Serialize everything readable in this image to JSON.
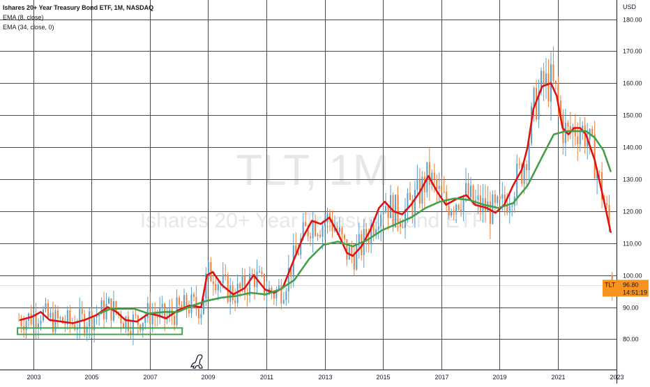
{
  "legend": {
    "title": "Ishares 20+ Year Treasury Bond ETF, 1M, NASDAQ",
    "ema_fast": "EMA (8, close)",
    "ema_slow": "EMA (34, close, 0)"
  },
  "watermark": {
    "symbol": "TLT, 1M",
    "name": "Ishares 20+ Year Treasury Bond ETF"
  },
  "price_tag": {
    "ticker": "TLT",
    "price": "96.80",
    "countdown": "14:51:19"
  },
  "colors": {
    "background": "#ffffff",
    "grid": "#4a4a4a",
    "ema_fast": "#e0120f",
    "ema_slow": "#43a047",
    "up_candle": "#5aa0c8",
    "down_candle": "#ef7f3a",
    "price_tag": "#f7931e",
    "box": "#43a047"
  },
  "icons": {
    "logo": "dinosaur-icon"
  },
  "chart_data": {
    "type": "candlestick",
    "title": "Ishares 20+ Year Treasury Bond ETF, 1M, NASDAQ",
    "y_unit": "USD",
    "ylim": [
      70.5,
      186
    ],
    "xlim": [
      2001.9,
      2023.05
    ],
    "grid": true,
    "y_ticks": [
      "180.00",
      "170.00",
      "160.00",
      "150.00",
      "140.00",
      "130.00",
      "120.00",
      "110.00",
      "100.00",
      "90.00",
      "80.00"
    ],
    "x_ticks": [
      "2003",
      "2005",
      "2007",
      "2009",
      "2011",
      "2013",
      "2015",
      "2017",
      "2019",
      "2021",
      "2023"
    ],
    "last_price": 96.8,
    "series": [
      {
        "name": "EMA (8, close)",
        "points": [
          [
            2002.6,
            86
          ],
          [
            2003.0,
            87
          ],
          [
            2003.3,
            88.5
          ],
          [
            2003.6,
            86
          ],
          [
            2004.0,
            85.5
          ],
          [
            2004.4,
            85
          ],
          [
            2004.8,
            86
          ],
          [
            2005.2,
            87.5
          ],
          [
            2005.6,
            90
          ],
          [
            2005.9,
            88.5
          ],
          [
            2006.2,
            86
          ],
          [
            2006.6,
            85.5
          ],
          [
            2007.0,
            88
          ],
          [
            2007.3,
            87.5
          ],
          [
            2007.6,
            86.5
          ],
          [
            2008.0,
            89
          ],
          [
            2008.4,
            90.5
          ],
          [
            2008.8,
            90
          ],
          [
            2009.0,
            100
          ],
          [
            2009.2,
            101
          ],
          [
            2009.5,
            97
          ],
          [
            2009.9,
            94
          ],
          [
            2010.3,
            96
          ],
          [
            2010.6,
            100
          ],
          [
            2011.0,
            95.5
          ],
          [
            2011.3,
            94.5
          ],
          [
            2011.6,
            96
          ],
          [
            2011.9,
            103
          ],
          [
            2012.3,
            112
          ],
          [
            2012.6,
            117
          ],
          [
            2012.9,
            116
          ],
          [
            2013.2,
            118
          ],
          [
            2013.5,
            113
          ],
          [
            2013.8,
            107
          ],
          [
            2014.0,
            106
          ],
          [
            2014.3,
            109
          ],
          [
            2014.6,
            114
          ],
          [
            2014.9,
            121
          ],
          [
            2015.1,
            123
          ],
          [
            2015.4,
            120
          ],
          [
            2015.7,
            119
          ],
          [
            2016.0,
            122
          ],
          [
            2016.3,
            126
          ],
          [
            2016.6,
            131
          ],
          [
            2016.9,
            126
          ],
          [
            2017.2,
            122
          ],
          [
            2017.6,
            124
          ],
          [
            2017.9,
            125
          ],
          [
            2018.2,
            122
          ],
          [
            2018.6,
            121
          ],
          [
            2018.9,
            119.5
          ],
          [
            2019.2,
            122
          ],
          [
            2019.5,
            128
          ],
          [
            2019.8,
            133
          ],
          [
            2020.0,
            140
          ],
          [
            2020.2,
            152
          ],
          [
            2020.5,
            159
          ],
          [
            2020.8,
            160
          ],
          [
            2021.0,
            156
          ],
          [
            2021.2,
            146
          ],
          [
            2021.4,
            144
          ],
          [
            2021.6,
            146
          ],
          [
            2021.8,
            146
          ],
          [
            2022.0,
            144
          ],
          [
            2022.3,
            136
          ],
          [
            2022.6,
            124
          ],
          [
            2022.85,
            113.5
          ]
        ]
      },
      {
        "name": "EMA (34, close, 0)",
        "points": [
          [
            2005.3,
            88
          ],
          [
            2005.7,
            89.5
          ],
          [
            2006.0,
            89.5
          ],
          [
            2006.5,
            89.5
          ],
          [
            2007.0,
            88
          ],
          [
            2007.5,
            88.5
          ],
          [
            2008.0,
            88.5
          ],
          [
            2008.5,
            90.5
          ],
          [
            2009.0,
            92
          ],
          [
            2009.5,
            93
          ],
          [
            2010.0,
            93.5
          ],
          [
            2010.5,
            94.5
          ],
          [
            2011.0,
            94
          ],
          [
            2011.5,
            95.5
          ],
          [
            2012.0,
            98.5
          ],
          [
            2012.5,
            105
          ],
          [
            2013.0,
            109.5
          ],
          [
            2013.5,
            110.5
          ],
          [
            2014.0,
            109
          ],
          [
            2014.5,
            111
          ],
          [
            2015.0,
            114
          ],
          [
            2015.5,
            116
          ],
          [
            2016.0,
            118
          ],
          [
            2016.5,
            121
          ],
          [
            2017.0,
            123
          ],
          [
            2017.5,
            124
          ],
          [
            2018.0,
            123.5
          ],
          [
            2018.5,
            122
          ],
          [
            2019.0,
            121
          ],
          [
            2019.5,
            122.5
          ],
          [
            2020.0,
            128
          ],
          [
            2020.5,
            137
          ],
          [
            2020.9,
            144
          ],
          [
            2021.3,
            145
          ],
          [
            2021.7,
            145
          ],
          [
            2022.0,
            145
          ],
          [
            2022.3,
            143
          ],
          [
            2022.6,
            139
          ],
          [
            2022.85,
            132.5
          ]
        ]
      }
    ],
    "annotations": [
      {
        "type": "rectangle",
        "x": [
          2002.5,
          2008.15
        ],
        "y": [
          81.5,
          83.5
        ]
      }
    ]
  }
}
